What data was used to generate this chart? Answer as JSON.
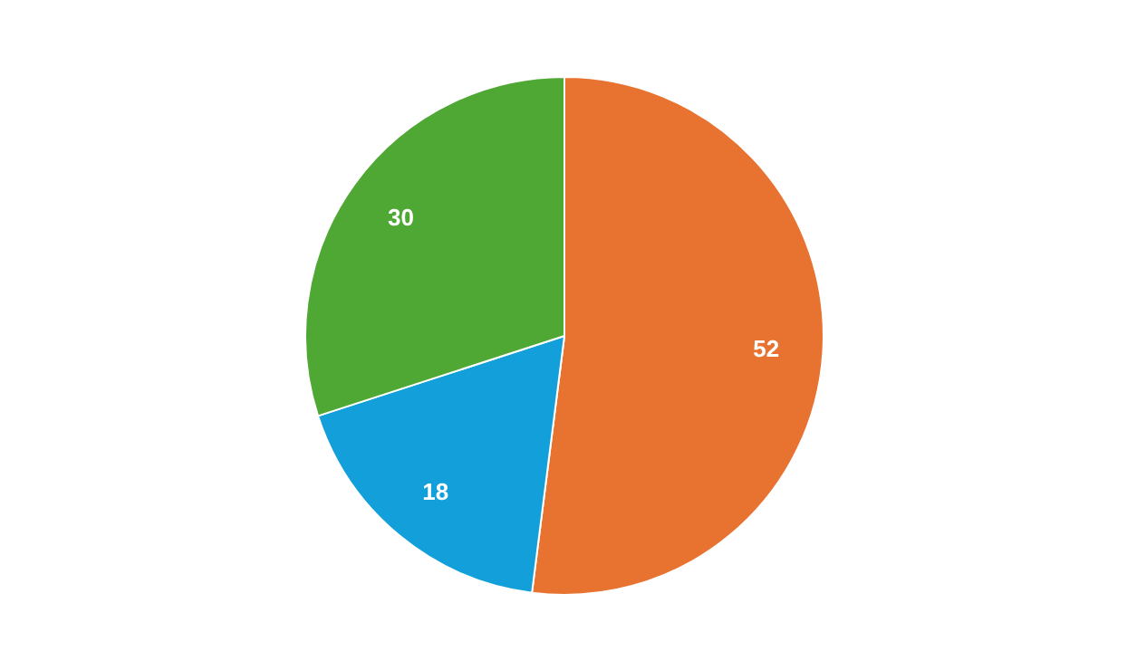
{
  "chart_data": {
    "type": "pie",
    "categories": [
      null,
      null,
      null
    ],
    "values": [
      52,
      18,
      30
    ],
    "colors": [
      "#e8722f",
      "#139fd9",
      "#4fa834"
    ],
    "data_labels": true
  }
}
